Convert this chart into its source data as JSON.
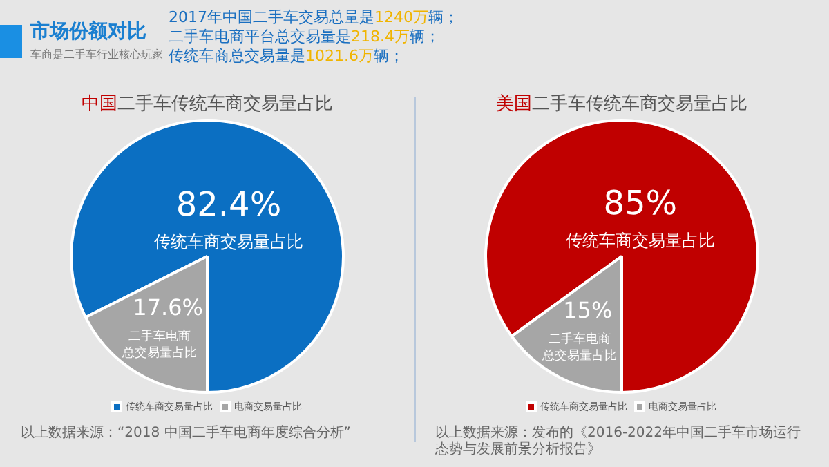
{
  "chart_data": [
    {
      "type": "other",
      "title": "市场份额对比",
      "subtitle": "车商是二手车行业核心玩家",
      "annotations": [
        "2017年中国二手车交易总量是1240万辆；",
        "二手车电商平台总交易量是218.4万辆；",
        "传统车商总交易量是1021.6万辆；"
      ]
    },
    {
      "type": "pie",
      "title": "中国二手车传统车商交易量占比",
      "categories": [
        "传统车商交易量占比",
        "电商交易量占比"
      ],
      "values": [
        82.4,
        17.6
      ],
      "colors": [
        "#0b6fc2",
        "#a6a6a6"
      ],
      "value_labels": [
        "82.4%",
        "17.6%"
      ],
      "legend": "bottom",
      "annotations": [
        {
          "text": "传统车商交易量占比",
          "x": "传统车商交易量占比"
        },
        {
          "text": "二手车电商总交易量占比",
          "x": "电商交易量占比"
        },
        "以上数据来源：“2018 中国二手车电商年度综合分析”"
      ]
    },
    {
      "type": "pie",
      "title": "美国二手车传统车商交易量占比",
      "categories": [
        "传统车商交易量占比",
        "电商交易量占比"
      ],
      "values": [
        85,
        15
      ],
      "colors": [
        "#c00000",
        "#a6a6a6"
      ],
      "value_labels": [
        "85%",
        "15%"
      ],
      "legend": "bottom",
      "annotations": [
        {
          "text": "传统车商交易量占比",
          "x": "传统车商交易量占比"
        },
        {
          "text": "二手车电商总交易量占比",
          "x": "电商交易量占比"
        },
        "以上数据来源：发布的《2016-2022年中国二手车市场运行态势与发展前景分析报告》"
      ]
    }
  ]
}
